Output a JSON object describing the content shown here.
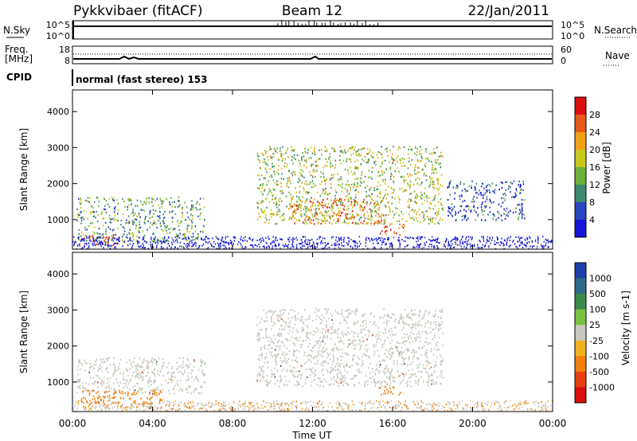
{
  "header": {
    "station": "Pykkvibaer (fitACF)",
    "beam": "Beam 12",
    "date": "22/Jan/2011"
  },
  "strip": {
    "nsky_label": "N.Sky",
    "nsearch_label": "N.Search",
    "freq_label_1": "Freq.",
    "freq_label_2": "[MHz]",
    "nave_label": "Nave",
    "cpid_label": "CPID",
    "cpid_value": "normal (fast stereo) 153",
    "left_ticks_top": [
      "10^5",
      "10^0"
    ],
    "right_ticks_top": [
      "10^5",
      "10^0"
    ],
    "left_ticks_mid": [
      "18",
      "8"
    ],
    "right_ticks_mid": [
      "60",
      "0"
    ]
  },
  "x_axis": {
    "label": "Time UT",
    "ticks": [
      "00:00",
      "04:00",
      "08:00",
      "12:00",
      "16:00",
      "20:00",
      "00:00"
    ]
  },
  "colors": {
    "power": [
      "#1515d8",
      "#2a46c0",
      "#3c8a70",
      "#6ab33a",
      "#c8c81e",
      "#f0a018",
      "#e85818",
      "#d81010"
    ],
    "velocity": [
      "#1f3fa8",
      "#2e6a8a",
      "#3a8a4a",
      "#7cc040",
      "#c8c8c0",
      "#f0b020",
      "#f08010",
      "#e84010",
      "#d81010"
    ]
  },
  "chart_data": [
    {
      "type": "heatmap",
      "title": "",
      "xlabel": "",
      "ylabel": "Slant Range [km]",
      "xlim": [
        0,
        24
      ],
      "ylim": [
        180,
        4600
      ],
      "y_ticks": [
        1000,
        2000,
        3000,
        4000
      ],
      "colorbar": {
        "label": "Power [dB]",
        "ticks": [
          "4",
          "8",
          "12",
          "16",
          "20",
          "24",
          "28"
        ],
        "range": [
          0,
          32
        ]
      },
      "regions": [
        {
          "t_start": 0.2,
          "t_end": 6.6,
          "range_start": 400,
          "range_end": 1650,
          "mean_power_db": 12
        },
        {
          "t_start": 0.3,
          "t_end": 2.2,
          "range_start": 250,
          "range_end": 600,
          "mean_power_db": 26
        },
        {
          "t_start": 9.2,
          "t_end": 18.5,
          "range_start": 900,
          "range_end": 3050,
          "mean_power_db": 16
        },
        {
          "t_start": 10.8,
          "t_end": 15.6,
          "range_start": 900,
          "range_end": 1600,
          "mean_power_db": 24
        },
        {
          "t_start": 15.2,
          "t_end": 16.6,
          "range_start": 600,
          "range_end": 900,
          "mean_power_db": 28
        },
        {
          "t_start": 18.7,
          "t_end": 22.6,
          "range_start": 1000,
          "range_end": 2100,
          "mean_power_db": 6
        }
      ]
    },
    {
      "type": "heatmap",
      "title": "",
      "xlabel": "Time UT",
      "ylabel": "Slant Range [km]",
      "xlim": [
        0,
        24
      ],
      "ylim": [
        180,
        4600
      ],
      "y_ticks": [
        1000,
        2000,
        3000,
        4000
      ],
      "colorbar": {
        "label": "Velocity [m s-1]",
        "ticks": [
          "1000",
          "500",
          "100",
          "25",
          "-25",
          "-100",
          "-500",
          "-1000"
        ]
      },
      "regions": [
        {
          "t_start": 0.2,
          "t_end": 6.6,
          "range_start": 700,
          "range_end": 1700,
          "mean_velocity": 0
        },
        {
          "t_start": 0.4,
          "t_end": 4.5,
          "range_start": 300,
          "range_end": 800,
          "mean_velocity": -150
        },
        {
          "t_start": 9.2,
          "t_end": 18.5,
          "range_start": 900,
          "range_end": 3050,
          "mean_velocity": 0
        },
        {
          "t_start": 15.2,
          "t_end": 16.4,
          "range_start": 650,
          "range_end": 900,
          "mean_velocity": -150
        }
      ]
    }
  ]
}
